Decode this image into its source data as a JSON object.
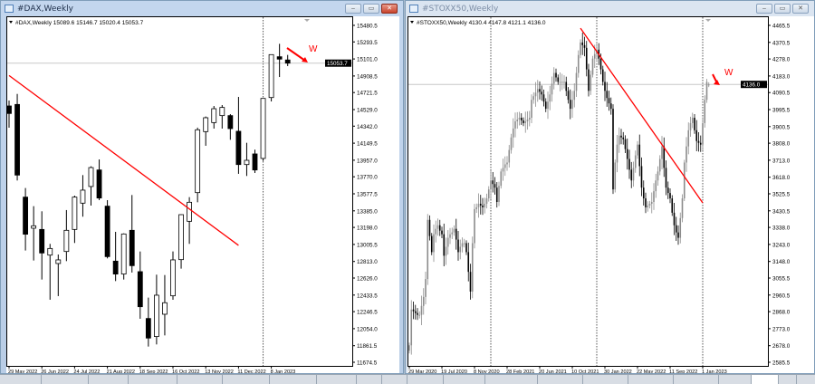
{
  "windows": [
    {
      "title": "#DAX,Weekly",
      "header": "#DAX,Weekly  15089.6 15146.7 15020.4 15053.7",
      "active": true
    },
    {
      "title": "#STOXX50,Weekly",
      "header": "#STOXX50,Weekly  4130.4 4147.8 4121.1 4136.0",
      "active": false
    }
  ],
  "window_buttons": {
    "minimize": "‒",
    "maximize": "▭",
    "close": "✕"
  },
  "colors": {
    "trendline": "#ff0000",
    "bear": "#000000",
    "bull_dax": "#ffffff",
    "bull_stoxx": "#8c8c8c",
    "price_label_bg": "#000000"
  },
  "chart_data": [
    {
      "type": "candlestick",
      "symbol": "#DAX",
      "timeframe": "Weekly",
      "y_ticks": [
        "15480.5",
        "15293.5",
        "15101.0",
        "14908.5",
        "14721.5",
        "14529.0",
        "14342.0",
        "14149.5",
        "13957.0",
        "13770.0",
        "13577.5",
        "13385.0",
        "13198.0",
        "13005.5",
        "12813.0",
        "12626.0",
        "12433.5",
        "12246.5",
        "12054.0",
        "11861.5",
        "11674.5"
      ],
      "ylim": [
        11674.5,
        15480.5
      ],
      "x_ticks": [
        "29 May 2022",
        "26 Jun 2022",
        "24 Jul 2022",
        "21 Aug 2022",
        "18 Sep 2022",
        "16 Oct 2022",
        "13 Nov 2022",
        "11 Dec 2022",
        "8 Jan 2023"
      ],
      "current_price": "15053.7",
      "period_separators": [
        "1 Jan 2023"
      ],
      "trendline": {
        "from": {
          "date": "29 May 2022",
          "price": 14914
        },
        "to": {
          "date": "11 Dec 2022",
          "price": 12995
        }
      },
      "annotation": {
        "text": "W",
        "arrow": "down-right"
      },
      "ohlc": [
        [
          14570,
          14631,
          14324,
          14485
        ],
        [
          14587,
          14706,
          13728,
          13789
        ],
        [
          13540,
          13643,
          12937,
          13121
        ],
        [
          13189,
          13438,
          12824,
          13216
        ],
        [
          13175,
          13380,
          12609,
          12909
        ],
        [
          12885,
          13012,
          12381,
          12960
        ],
        [
          12790,
          12892,
          12422,
          12831
        ],
        [
          12926,
          13394,
          12817,
          13165
        ],
        [
          13175,
          13557,
          13022,
          13540
        ],
        [
          13472,
          13789,
          13319,
          13619
        ],
        [
          13660,
          13888,
          13445,
          13874
        ],
        [
          13847,
          13966,
          13506,
          13530
        ],
        [
          13438,
          13506,
          12848,
          12868
        ],
        [
          12817,
          13148,
          12592,
          12671
        ],
        [
          12671,
          13131,
          12609,
          13124
        ],
        [
          13165,
          13564,
          12688,
          12766
        ],
        [
          12698,
          12926,
          12166,
          12302
        ],
        [
          12169,
          12405,
          11852,
          11948
        ],
        [
          11965,
          12664,
          11876,
          12432
        ],
        [
          12217,
          12660,
          11978,
          12347
        ],
        [
          12425,
          12926,
          12381,
          12831
        ],
        [
          12834,
          13346,
          12732,
          13342
        ],
        [
          13267,
          13540,
          13012,
          13482
        ],
        [
          13591,
          14325,
          13482,
          14301
        ],
        [
          14280,
          14451,
          14120,
          14437
        ],
        [
          14382,
          14570,
          14314,
          14539
        ],
        [
          14461,
          14580,
          14314,
          14553
        ],
        [
          14461,
          14478,
          14188,
          14314
        ],
        [
          14284,
          14672,
          13803,
          13908
        ],
        [
          13908,
          14154,
          13779,
          13956
        ],
        [
          14028,
          14076,
          13813,
          13847
        ],
        [
          13977,
          14655,
          13949,
          14655
        ],
        [
          14665,
          15150,
          14621,
          15150
        ],
        [
          15126,
          15272,
          14897,
          15099
        ],
        [
          15089.6,
          15146.7,
          15020.4,
          15053.7
        ]
      ]
    },
    {
      "type": "candlestick",
      "symbol": "#STOXX50",
      "timeframe": "Weekly",
      "y_ticks": [
        "4465.5",
        "4370.5",
        "4278.0",
        "4183.0",
        "4090.5",
        "3995.5",
        "3900.5",
        "3808.0",
        "3713.0",
        "3618.0",
        "3525.5",
        "3430.5",
        "3338.0",
        "3243.0",
        "3148.0",
        "3055.5",
        "2960.5",
        "2868.0",
        "2773.0",
        "2678.0",
        "2585.5"
      ],
      "ylim": [
        2585.5,
        4465.5
      ],
      "x_ticks": [
        "29 Mar 2020",
        "19 Jul 2020",
        "8 Nov 2020",
        "28 Feb 2021",
        "20 Jun 2021",
        "10 Oct 2021",
        "30 Jan 2022",
        "22 May 2022",
        "11 Sep 2022",
        "1 Jan 2023"
      ],
      "current_price": "4136.0",
      "period_separators": [
        "3 Jan 2021",
        "2 Jan 2022",
        "1 Jan 2023"
      ],
      "trendline": {
        "from": {
          "date": "14 Nov 2021",
          "price": 4450
        },
        "to": {
          "date": "1 Jan 2023",
          "price": 3475
        }
      },
      "annotation": {
        "text": "W",
        "arrow": "down-right"
      },
      "last_bar": [
        4130.4,
        4147.8,
        4121.1,
        4136.0
      ],
      "closes": [
        2680,
        2880,
        2870,
        2860,
        2850,
        2850,
        2900,
        2950,
        3050,
        3380,
        3290,
        3200,
        3300,
        3330,
        3350,
        3320,
        3300,
        3180,
        3230,
        3280,
        3300,
        3310,
        3330,
        3270,
        3200,
        3230,
        3250,
        3250,
        3200,
        3090,
        2980,
        3250,
        3440,
        3450,
        3470,
        3460,
        3450,
        3470,
        3500,
        3550,
        3600,
        3580,
        3560,
        3480,
        3570,
        3650,
        3670,
        3690,
        3700,
        3770,
        3840,
        3890,
        3930,
        3940,
        3950,
        3935,
        3920,
        3930,
        3940,
        3950,
        4050,
        4070,
        4090,
        4110,
        4095,
        4080,
        4040,
        4000,
        4040,
        4080,
        4140,
        4200,
        4175,
        4150,
        4150,
        4150,
        4150,
        4100,
        4050,
        4000,
        4050,
        4100,
        4200,
        4300,
        4370,
        4355,
        4340,
        4220,
        4100,
        4190,
        4280,
        4305,
        4330,
        4280,
        4220,
        4150,
        4100,
        4060,
        4030,
        4000,
        3550,
        3700,
        3800,
        3850,
        3840,
        3830,
        3775,
        3720,
        3660,
        3600,
        3670,
        3740,
        3800,
        3680,
        3560,
        3500,
        3450,
        3460,
        3470,
        3480,
        3540,
        3600,
        3650,
        3720,
        3790,
        3670,
        3560,
        3530,
        3500,
        3420,
        3350,
        3310,
        3280,
        3390,
        3500,
        3700,
        3790,
        3880,
        3920,
        3950,
        3880,
        3820,
        3810,
        3800,
        3920,
        4050,
        4150,
        4136
      ]
    }
  ]
}
